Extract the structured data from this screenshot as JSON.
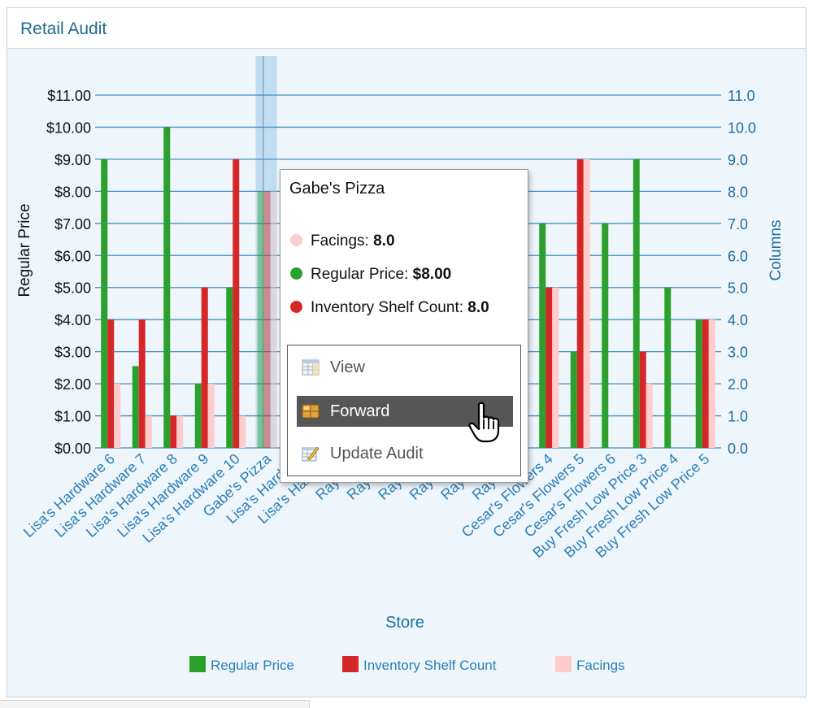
{
  "panel": {
    "title": "Retail Audit"
  },
  "chart_data": {
    "type": "bar",
    "categories": [
      "Lisa's Hardware 6",
      "Lisa's Hardware 7",
      "Lisa's Hardware 8",
      "Lisa's Hardware 9",
      "Lisa's Hardware 10",
      "Gabe's Pizza",
      "Lisa's Hardwar",
      "Lisa's Hardwar",
      "Ray's Me",
      "Ray's Me",
      "Ray's Me",
      "Ray's Me",
      "Ray's Me",
      "Ray's Me",
      "Cesar's Flowers 4",
      "Cesar's Flowers 5",
      "Cesar's Flowers 6",
      "Buy Fresh Low Price 3",
      "Buy Fresh Low Price 4",
      "Buy Fresh Low Price 5"
    ],
    "series": [
      {
        "name": "Regular Price",
        "axis": "left",
        "color": "#2ca02c",
        "values": [
          9,
          2.55,
          10,
          2,
          5,
          8,
          null,
          null,
          null,
          null,
          null,
          null,
          null,
          null,
          7,
          3,
          7,
          9,
          5,
          4
        ]
      },
      {
        "name": "Inventory Shelf Count",
        "axis": "right",
        "color": "#d62728",
        "values": [
          4,
          4,
          1,
          5,
          9,
          8,
          null,
          null,
          null,
          null,
          null,
          null,
          null,
          null,
          5,
          9,
          0,
          3,
          0,
          4
        ]
      },
      {
        "name": "Facings",
        "axis": "right",
        "color": "#ffcccc",
        "values": [
          2,
          1,
          1,
          2,
          1,
          8,
          null,
          null,
          null,
          null,
          null,
          null,
          null,
          null,
          5,
          9,
          0,
          2,
          0,
          4
        ]
      }
    ],
    "xlabel": "Store",
    "ylabel": "Regular Price",
    "y2label": "Columns",
    "ylim": [
      0,
      11
    ],
    "y2lim": [
      0,
      11
    ],
    "yticks": [
      "$0.00",
      "$1.00",
      "$2.00",
      "$3.00",
      "$4.00",
      "$5.00",
      "$6.00",
      "$7.00",
      "$8.00",
      "$9.00",
      "$10.00",
      "$11.00"
    ],
    "y2ticks": [
      "0.0",
      "1.0",
      "2.0",
      "3.0",
      "4.0",
      "5.0",
      "6.0",
      "7.0",
      "8.0",
      "9.0",
      "10.0",
      "11.0"
    ],
    "grid": true,
    "legend": "bottom",
    "highlighted_category": "Gabe's Pizza"
  },
  "tooltip": {
    "title": "Gabe's Pizza",
    "rows": [
      {
        "label": "Facings:",
        "value": "8.0",
        "color": "#ffcccc"
      },
      {
        "label": "Regular Price:",
        "value": "$8.00",
        "color": "#2ca02c"
      },
      {
        "label": "Inventory Shelf Count:",
        "value": "8.0",
        "color": "#d62728"
      }
    ]
  },
  "menu": {
    "items": [
      {
        "label": "View",
        "icon": "table-icon"
      },
      {
        "label": "Forward",
        "icon": "forward-icon"
      },
      {
        "label": "Update Audit",
        "icon": "edit-icon"
      }
    ],
    "active": "Forward"
  }
}
